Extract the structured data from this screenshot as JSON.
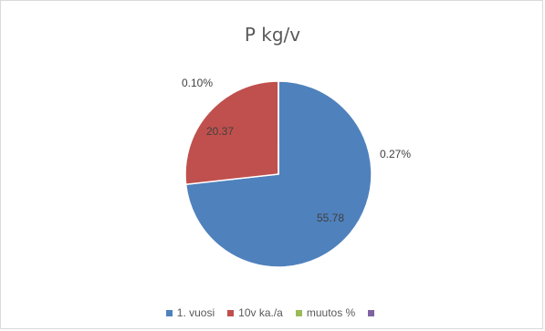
{
  "chart_data": {
    "type": "pie",
    "title": "P kg/v",
    "series": [
      {
        "name": "1. vuosi",
        "value": 55.78,
        "label": "55.78",
        "color": "#4f81bd"
      },
      {
        "name": "10v ka./a",
        "value": 20.37,
        "label": "20.37",
        "color": "#c0504d"
      },
      {
        "name": "muutos %",
        "value": 0.0027,
        "label": "0.27%",
        "color": "#9bbb59"
      },
      {
        "name": "",
        "value": 0.001,
        "label": "0.10%",
        "color": "#8064a2"
      }
    ],
    "legend": "bottom"
  }
}
